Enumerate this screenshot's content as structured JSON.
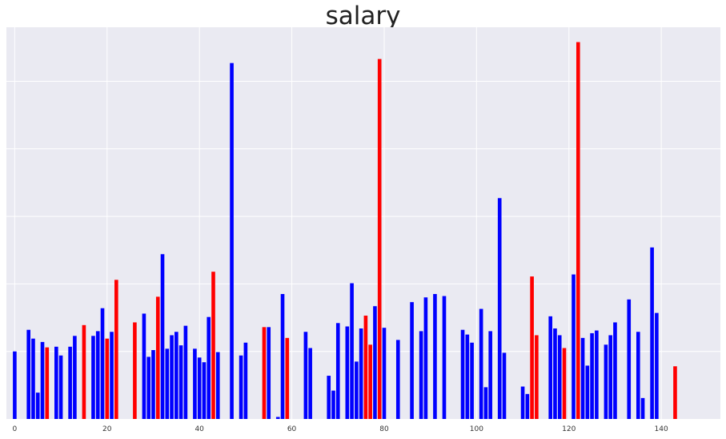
{
  "chart_data": {
    "type": "bar",
    "title": "salary",
    "xlabel": "",
    "ylabel": "",
    "x_ticks": [
      0,
      20,
      40,
      60,
      80,
      100,
      120,
      140
    ],
    "xlim": [
      -1.8,
      152.8
    ],
    "ylim": [
      0,
      5800
    ],
    "grid": true,
    "show_y_tick_labels": false,
    "colors": {
      "default": "#0000ff",
      "highlight": "#ff0000",
      "background": "#eaeaf2",
      "grid": "#ffffff"
    },
    "bars": [
      {
        "x": 0,
        "value": 1000,
        "highlight": false
      },
      {
        "x": 3,
        "value": 1320,
        "highlight": false
      },
      {
        "x": 4,
        "value": 1190,
        "highlight": false
      },
      {
        "x": 5,
        "value": 390,
        "highlight": false
      },
      {
        "x": 6,
        "value": 1140,
        "highlight": false
      },
      {
        "x": 7,
        "value": 1060,
        "highlight": true
      },
      {
        "x": 9,
        "value": 1070,
        "highlight": false
      },
      {
        "x": 10,
        "value": 940,
        "highlight": false
      },
      {
        "x": 12,
        "value": 1070,
        "highlight": false
      },
      {
        "x": 13,
        "value": 1230,
        "highlight": false
      },
      {
        "x": 15,
        "value": 1390,
        "highlight": true
      },
      {
        "x": 17,
        "value": 1230,
        "highlight": false
      },
      {
        "x": 18,
        "value": 1300,
        "highlight": false
      },
      {
        "x": 19,
        "value": 1640,
        "highlight": false
      },
      {
        "x": 20,
        "value": 1190,
        "highlight": true
      },
      {
        "x": 21,
        "value": 1290,
        "highlight": false
      },
      {
        "x": 22,
        "value": 2060,
        "highlight": true
      },
      {
        "x": 26,
        "value": 1430,
        "highlight": true
      },
      {
        "x": 28,
        "value": 1560,
        "highlight": false
      },
      {
        "x": 29,
        "value": 920,
        "highlight": false
      },
      {
        "x": 30,
        "value": 1020,
        "highlight": false
      },
      {
        "x": 31,
        "value": 1810,
        "highlight": true
      },
      {
        "x": 32,
        "value": 2440,
        "highlight": false
      },
      {
        "x": 33,
        "value": 1040,
        "highlight": false
      },
      {
        "x": 34,
        "value": 1240,
        "highlight": false
      },
      {
        "x": 35,
        "value": 1290,
        "highlight": false
      },
      {
        "x": 36,
        "value": 1090,
        "highlight": false
      },
      {
        "x": 37,
        "value": 1380,
        "highlight": false
      },
      {
        "x": 39,
        "value": 1040,
        "highlight": false
      },
      {
        "x": 40,
        "value": 910,
        "highlight": false
      },
      {
        "x": 41,
        "value": 840,
        "highlight": false
      },
      {
        "x": 42,
        "value": 1510,
        "highlight": false
      },
      {
        "x": 43,
        "value": 2180,
        "highlight": true
      },
      {
        "x": 44,
        "value": 990,
        "highlight": false
      },
      {
        "x": 47,
        "value": 5270,
        "highlight": false
      },
      {
        "x": 49,
        "value": 940,
        "highlight": false
      },
      {
        "x": 50,
        "value": 1130,
        "highlight": false
      },
      {
        "x": 54,
        "value": 1360,
        "highlight": true
      },
      {
        "x": 55,
        "value": 1360,
        "highlight": false
      },
      {
        "x": 57,
        "value": 30,
        "highlight": false
      },
      {
        "x": 58,
        "value": 1850,
        "highlight": false
      },
      {
        "x": 59,
        "value": 1200,
        "highlight": true
      },
      {
        "x": 63,
        "value": 1290,
        "highlight": false
      },
      {
        "x": 64,
        "value": 1050,
        "highlight": false
      },
      {
        "x": 68,
        "value": 640,
        "highlight": false
      },
      {
        "x": 69,
        "value": 420,
        "highlight": false
      },
      {
        "x": 70,
        "value": 1420,
        "highlight": false
      },
      {
        "x": 72,
        "value": 1370,
        "highlight": false
      },
      {
        "x": 73,
        "value": 2010,
        "highlight": false
      },
      {
        "x": 74,
        "value": 850,
        "highlight": false
      },
      {
        "x": 75,
        "value": 1340,
        "highlight": false
      },
      {
        "x": 76,
        "value": 1530,
        "highlight": true
      },
      {
        "x": 77,
        "value": 1100,
        "highlight": true
      },
      {
        "x": 78,
        "value": 1670,
        "highlight": false
      },
      {
        "x": 79,
        "value": 5330,
        "highlight": true
      },
      {
        "x": 80,
        "value": 1350,
        "highlight": false
      },
      {
        "x": 83,
        "value": 1170,
        "highlight": false
      },
      {
        "x": 86,
        "value": 1730,
        "highlight": false
      },
      {
        "x": 88,
        "value": 1300,
        "highlight": false
      },
      {
        "x": 89,
        "value": 1800,
        "highlight": false
      },
      {
        "x": 91,
        "value": 1850,
        "highlight": false
      },
      {
        "x": 93,
        "value": 1820,
        "highlight": false
      },
      {
        "x": 97,
        "value": 1320,
        "highlight": false
      },
      {
        "x": 98,
        "value": 1250,
        "highlight": false
      },
      {
        "x": 99,
        "value": 1130,
        "highlight": false
      },
      {
        "x": 101,
        "value": 1630,
        "highlight": false
      },
      {
        "x": 102,
        "value": 470,
        "highlight": false
      },
      {
        "x": 103,
        "value": 1300,
        "highlight": false
      },
      {
        "x": 105,
        "value": 3270,
        "highlight": false
      },
      {
        "x": 106,
        "value": 980,
        "highlight": false
      },
      {
        "x": 110,
        "value": 480,
        "highlight": false
      },
      {
        "x": 111,
        "value": 370,
        "highlight": false
      },
      {
        "x": 112,
        "value": 2110,
        "highlight": true
      },
      {
        "x": 113,
        "value": 1240,
        "highlight": true
      },
      {
        "x": 116,
        "value": 1520,
        "highlight": false
      },
      {
        "x": 117,
        "value": 1340,
        "highlight": false
      },
      {
        "x": 118,
        "value": 1240,
        "highlight": false
      },
      {
        "x": 119,
        "value": 1050,
        "highlight": true
      },
      {
        "x": 121,
        "value": 2140,
        "highlight": false
      },
      {
        "x": 122,
        "value": 5580,
        "highlight": true
      },
      {
        "x": 123,
        "value": 1200,
        "highlight": false
      },
      {
        "x": 124,
        "value": 790,
        "highlight": false
      },
      {
        "x": 125,
        "value": 1270,
        "highlight": false
      },
      {
        "x": 126,
        "value": 1310,
        "highlight": false
      },
      {
        "x": 128,
        "value": 1100,
        "highlight": false
      },
      {
        "x": 129,
        "value": 1240,
        "highlight": false
      },
      {
        "x": 130,
        "value": 1430,
        "highlight": false
      },
      {
        "x": 133,
        "value": 1770,
        "highlight": false
      },
      {
        "x": 135,
        "value": 1290,
        "highlight": false
      },
      {
        "x": 136,
        "value": 310,
        "highlight": false
      },
      {
        "x": 138,
        "value": 2540,
        "highlight": false
      },
      {
        "x": 139,
        "value": 1570,
        "highlight": false
      },
      {
        "x": 143,
        "value": 780,
        "highlight": true
      }
    ]
  }
}
